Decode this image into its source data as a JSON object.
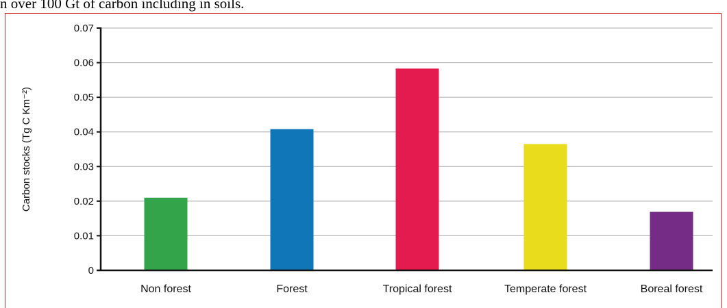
{
  "page": {
    "top_text": "n over 100 Gt of carbon including in soils."
  },
  "chart_data": {
    "type": "bar",
    "title": "",
    "xlabel": "",
    "ylabel": "Carbon stocks (Tg C Km⁻²)",
    "ylim": [
      0,
      0.07
    ],
    "yticks": [
      "0",
      "0.01",
      "0.02",
      "0.03",
      "0.04",
      "0.05",
      "0.06",
      "0.07"
    ],
    "grid": true,
    "categories": [
      "Non forest",
      "Forest",
      "Tropical forest",
      "Temperate forest",
      "Boreal forest"
    ],
    "values": [
      0.021,
      0.0408,
      0.0583,
      0.0365,
      0.0169
    ],
    "colors": [
      "#33a449",
      "#1176b8",
      "#e31b4f",
      "#e8dc1c",
      "#752c86"
    ]
  }
}
